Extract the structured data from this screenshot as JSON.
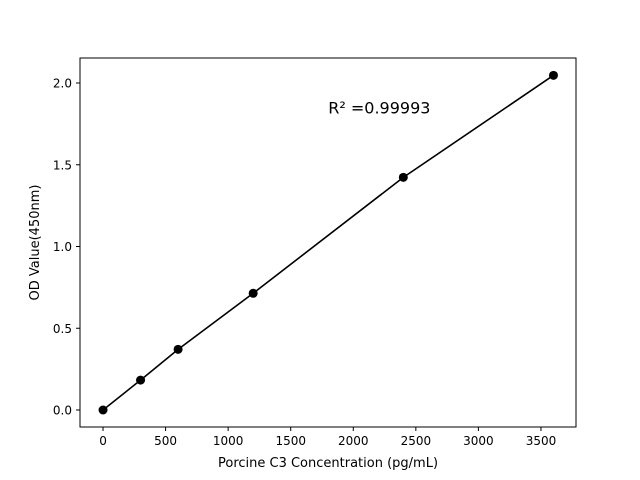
{
  "chart_data": {
    "type": "line",
    "title": "",
    "xlabel": "Porcine C3 Concentration (pg/mL)",
    "ylabel": "OD Value(450nm)",
    "x": [
      0,
      300,
      600,
      1200,
      2400,
      3600
    ],
    "series": [
      {
        "values": [
          0.0,
          0.183,
          0.371,
          0.714,
          1.423,
          2.047
        ],
        "color": "#000000",
        "marker": "circle"
      }
    ],
    "xlim": [
      -184,
      3780
    ],
    "ylim": [
      -0.104,
      2.153
    ],
    "xticks": [
      0,
      500,
      1000,
      1500,
      2000,
      2500,
      3000,
      3500
    ],
    "xtick_labels": [
      "0",
      "500",
      "1000",
      "1500",
      "2000",
      "2500",
      "3000",
      "3500"
    ],
    "yticks": [
      0.0,
      0.5,
      1.0,
      1.5,
      2.0
    ],
    "ytick_labels": [
      "0.0",
      "0.5",
      "1.0",
      "1.5",
      "2.0"
    ],
    "annotation": {
      "text": "R² =0.99993",
      "x": 1800,
      "y": 1.85
    },
    "grid": false,
    "legend": "none"
  }
}
